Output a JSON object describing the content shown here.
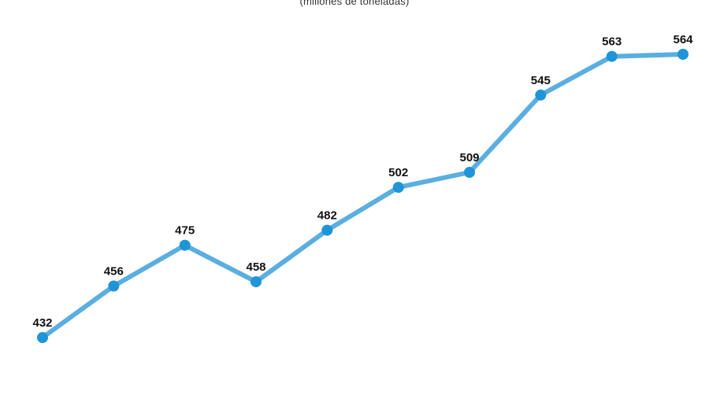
{
  "chart_data": {
    "type": "line",
    "subtitle": "(millones de toneladas)",
    "series": [
      {
        "values": [
          432,
          456,
          475,
          458,
          482,
          502,
          509,
          545,
          563,
          564
        ],
        "labels": [
          "432",
          "456",
          "475",
          "458",
          "482",
          "502",
          "509",
          "545",
          "563",
          "564"
        ]
      }
    ],
    "grid": false,
    "legend": "none",
    "colors": {
      "line": "#5aaee0",
      "point": "#1f95d8",
      "label": "#111111"
    }
  }
}
